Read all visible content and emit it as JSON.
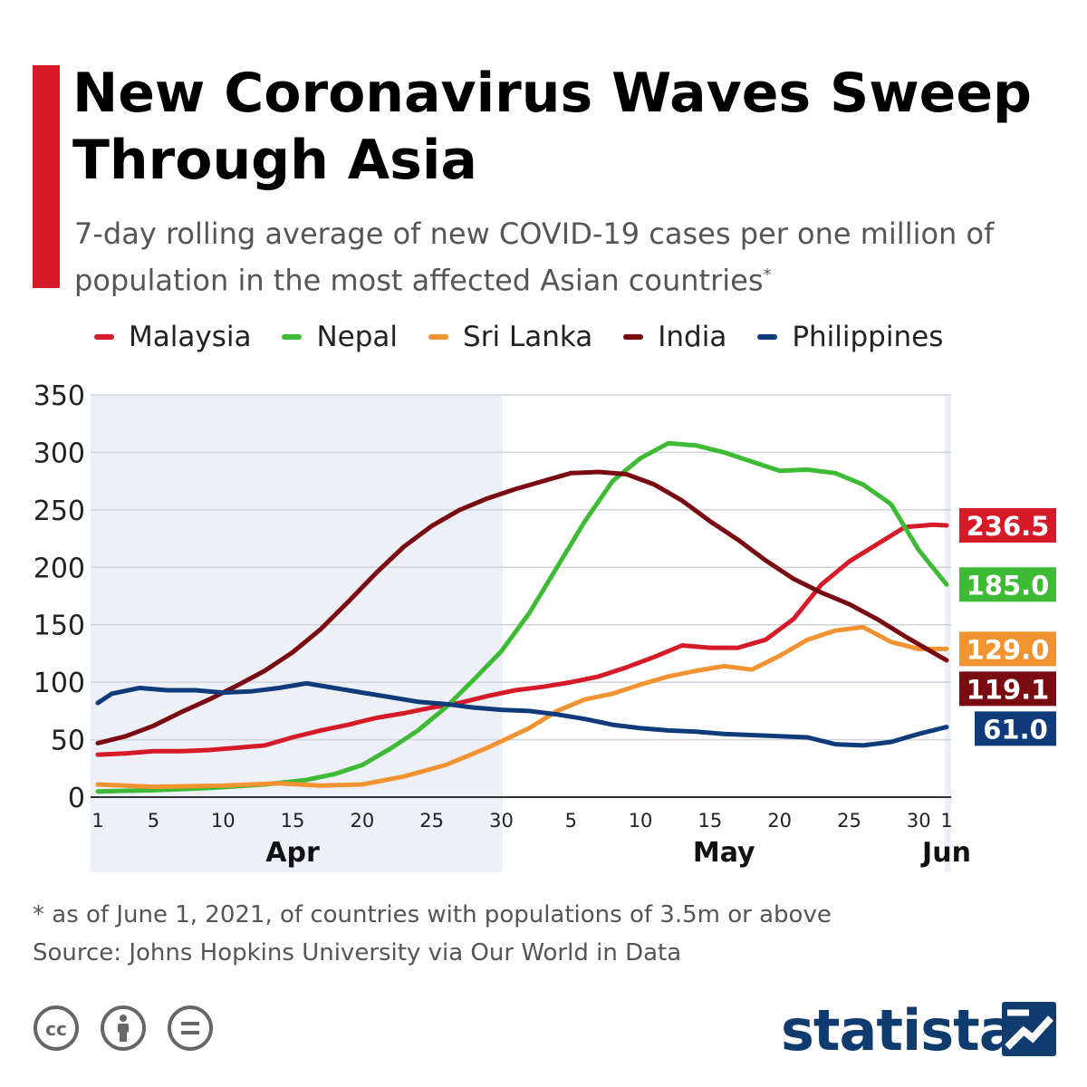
{
  "header": {
    "title": "New Coronavirus Waves Sweep Through Asia",
    "subtitle": "7-day rolling average of new COVID-19 cases per one million of population in the most affected Asian countries",
    "subtitle_mark": "*",
    "accent_color": "#d71a28"
  },
  "legend": [
    {
      "name": "Malaysia",
      "color": "#d71a28"
    },
    {
      "name": "Nepal",
      "color": "#3dbb35"
    },
    {
      "name": "Sri Lanka",
      "color": "#f29331"
    },
    {
      "name": "India",
      "color": "#7a0b10"
    },
    {
      "name": "Philippines",
      "color": "#0f3b7a"
    }
  ],
  "chart_data": {
    "type": "line",
    "title": "New Coronavirus Waves Sweep Through Asia",
    "ylim": [
      0,
      350
    ],
    "yticks": [
      0,
      50,
      100,
      150,
      200,
      250,
      300,
      350
    ],
    "grid": true,
    "legend_position": "top",
    "x_start": "2021-04-01",
    "x_end": "2021-06-01",
    "xticks": [
      {
        "label": "1",
        "date": "2021-04-01"
      },
      {
        "label": "5",
        "date": "2021-04-05"
      },
      {
        "label": "10",
        "date": "2021-04-10"
      },
      {
        "label": "15",
        "date": "2021-04-15"
      },
      {
        "label": "20",
        "date": "2021-04-20"
      },
      {
        "label": "25",
        "date": "2021-04-25"
      },
      {
        "label": "30",
        "date": "2021-04-30"
      },
      {
        "label": "5",
        "date": "2021-05-05"
      },
      {
        "label": "10",
        "date": "2021-05-10"
      },
      {
        "label": "15",
        "date": "2021-05-15"
      },
      {
        "label": "20",
        "date": "2021-05-20"
      },
      {
        "label": "25",
        "date": "2021-05-25"
      },
      {
        "label": "30",
        "date": "2021-05-30"
      },
      {
        "label": "1",
        "date": "2021-06-01"
      }
    ],
    "months": [
      {
        "label": "Apr",
        "date": "2021-04-15"
      },
      {
        "label": "May",
        "date": "2021-05-16"
      },
      {
        "label": "Jun",
        "date": "2021-06-01"
      }
    ],
    "series": [
      {
        "name": "Malaysia",
        "color": "#d71a28",
        "end_label": "236.5",
        "points": [
          [
            "2021-04-01",
            37
          ],
          [
            "2021-04-03",
            38
          ],
          [
            "2021-04-05",
            40
          ],
          [
            "2021-04-07",
            40
          ],
          [
            "2021-04-09",
            41
          ],
          [
            "2021-04-11",
            43
          ],
          [
            "2021-04-13",
            45
          ],
          [
            "2021-04-15",
            52
          ],
          [
            "2021-04-17",
            58
          ],
          [
            "2021-04-19",
            63
          ],
          [
            "2021-04-21",
            69
          ],
          [
            "2021-04-23",
            73
          ],
          [
            "2021-04-25",
            78
          ],
          [
            "2021-04-27",
            82
          ],
          [
            "2021-04-29",
            88
          ],
          [
            "2021-05-01",
            93
          ],
          [
            "2021-05-03",
            96
          ],
          [
            "2021-05-05",
            100
          ],
          [
            "2021-05-07",
            105
          ],
          [
            "2021-05-09",
            113
          ],
          [
            "2021-05-11",
            122
          ],
          [
            "2021-05-13",
            132
          ],
          [
            "2021-05-15",
            130
          ],
          [
            "2021-05-17",
            130
          ],
          [
            "2021-05-19",
            137
          ],
          [
            "2021-05-21",
            155
          ],
          [
            "2021-05-23",
            185
          ],
          [
            "2021-05-25",
            205
          ],
          [
            "2021-05-27",
            220
          ],
          [
            "2021-05-29",
            235
          ],
          [
            "2021-05-31",
            237
          ],
          [
            "2021-06-01",
            236.5
          ]
        ]
      },
      {
        "name": "Nepal",
        "color": "#3dbb35",
        "end_label": "185.0",
        "points": [
          [
            "2021-04-01",
            5
          ],
          [
            "2021-04-05",
            6
          ],
          [
            "2021-04-09",
            8
          ],
          [
            "2021-04-13",
            11
          ],
          [
            "2021-04-16",
            15
          ],
          [
            "2021-04-18",
            20
          ],
          [
            "2021-04-20",
            28
          ],
          [
            "2021-04-22",
            42
          ],
          [
            "2021-04-24",
            58
          ],
          [
            "2021-04-26",
            78
          ],
          [
            "2021-04-28",
            102
          ],
          [
            "2021-04-30",
            127
          ],
          [
            "2021-05-02",
            160
          ],
          [
            "2021-05-04",
            200
          ],
          [
            "2021-05-06",
            240
          ],
          [
            "2021-05-08",
            275
          ],
          [
            "2021-05-10",
            295
          ],
          [
            "2021-05-12",
            308
          ],
          [
            "2021-05-14",
            306
          ],
          [
            "2021-05-16",
            300
          ],
          [
            "2021-05-18",
            292
          ],
          [
            "2021-05-20",
            284
          ],
          [
            "2021-05-22",
            285
          ],
          [
            "2021-05-24",
            282
          ],
          [
            "2021-05-26",
            272
          ],
          [
            "2021-05-28",
            255
          ],
          [
            "2021-05-30",
            215
          ],
          [
            "2021-06-01",
            185
          ]
        ]
      },
      {
        "name": "Sri Lanka",
        "color": "#f29331",
        "end_label": "129.0",
        "points": [
          [
            "2021-04-01",
            11
          ],
          [
            "2021-04-05",
            9
          ],
          [
            "2021-04-10",
            10
          ],
          [
            "2021-04-14",
            12
          ],
          [
            "2021-04-17",
            10
          ],
          [
            "2021-04-20",
            11
          ],
          [
            "2021-04-23",
            18
          ],
          [
            "2021-04-26",
            28
          ],
          [
            "2021-04-29",
            43
          ],
          [
            "2021-05-02",
            60
          ],
          [
            "2021-05-04",
            75
          ],
          [
            "2021-05-06",
            85
          ],
          [
            "2021-05-08",
            90
          ],
          [
            "2021-05-10",
            98
          ],
          [
            "2021-05-12",
            105
          ],
          [
            "2021-05-14",
            110
          ],
          [
            "2021-05-16",
            114
          ],
          [
            "2021-05-18",
            111
          ],
          [
            "2021-05-20",
            123
          ],
          [
            "2021-05-22",
            137
          ],
          [
            "2021-05-24",
            145
          ],
          [
            "2021-05-26",
            148
          ],
          [
            "2021-05-28",
            135
          ],
          [
            "2021-05-30",
            129
          ],
          [
            "2021-06-01",
            129
          ]
        ]
      },
      {
        "name": "India",
        "color": "#7a0b10",
        "end_label": "119.1",
        "points": [
          [
            "2021-04-01",
            47
          ],
          [
            "2021-04-03",
            53
          ],
          [
            "2021-04-05",
            62
          ],
          [
            "2021-04-07",
            74
          ],
          [
            "2021-04-09",
            85
          ],
          [
            "2021-04-11",
            97
          ],
          [
            "2021-04-13",
            110
          ],
          [
            "2021-04-15",
            126
          ],
          [
            "2021-04-17",
            146
          ],
          [
            "2021-04-19",
            170
          ],
          [
            "2021-04-21",
            195
          ],
          [
            "2021-04-23",
            218
          ],
          [
            "2021-04-25",
            236
          ],
          [
            "2021-04-27",
            250
          ],
          [
            "2021-04-29",
            260
          ],
          [
            "2021-05-01",
            268
          ],
          [
            "2021-05-03",
            275
          ],
          [
            "2021-05-05",
            282
          ],
          [
            "2021-05-07",
            283
          ],
          [
            "2021-05-09",
            281
          ],
          [
            "2021-05-11",
            272
          ],
          [
            "2021-05-13",
            258
          ],
          [
            "2021-05-15",
            240
          ],
          [
            "2021-05-17",
            224
          ],
          [
            "2021-05-19",
            206
          ],
          [
            "2021-05-21",
            190
          ],
          [
            "2021-05-23",
            178
          ],
          [
            "2021-05-25",
            168
          ],
          [
            "2021-05-27",
            155
          ],
          [
            "2021-05-29",
            140
          ],
          [
            "2021-05-31",
            126
          ],
          [
            "2021-06-01",
            119.1
          ]
        ]
      },
      {
        "name": "Philippines",
        "color": "#0f3b7a",
        "end_label": "61.0",
        "points": [
          [
            "2021-04-01",
            82
          ],
          [
            "2021-04-02",
            90
          ],
          [
            "2021-04-04",
            95
          ],
          [
            "2021-04-06",
            93
          ],
          [
            "2021-04-08",
            93
          ],
          [
            "2021-04-10",
            91
          ],
          [
            "2021-04-12",
            92
          ],
          [
            "2021-04-14",
            95
          ],
          [
            "2021-04-16",
            99
          ],
          [
            "2021-04-18",
            95
          ],
          [
            "2021-04-20",
            91
          ],
          [
            "2021-04-22",
            87
          ],
          [
            "2021-04-24",
            83
          ],
          [
            "2021-04-26",
            81
          ],
          [
            "2021-04-28",
            78
          ],
          [
            "2021-04-30",
            76
          ],
          [
            "2021-05-02",
            75
          ],
          [
            "2021-05-04",
            72
          ],
          [
            "2021-05-06",
            68
          ],
          [
            "2021-05-08",
            63
          ],
          [
            "2021-05-10",
            60
          ],
          [
            "2021-05-12",
            58
          ],
          [
            "2021-05-14",
            57
          ],
          [
            "2021-05-16",
            55
          ],
          [
            "2021-05-18",
            54
          ],
          [
            "2021-05-20",
            53
          ],
          [
            "2021-05-22",
            52
          ],
          [
            "2021-05-24",
            46
          ],
          [
            "2021-05-26",
            45
          ],
          [
            "2021-05-28",
            48
          ],
          [
            "2021-05-30",
            55
          ],
          [
            "2021-06-01",
            61
          ]
        ]
      }
    ]
  },
  "footer": {
    "footnote": "* as of June 1, 2021, of countries with populations of 3.5m or above",
    "source": "Source: Johns Hopkins University via Our World in Data",
    "logo_text": "statista",
    "logo_color": "#0f3b6e"
  }
}
